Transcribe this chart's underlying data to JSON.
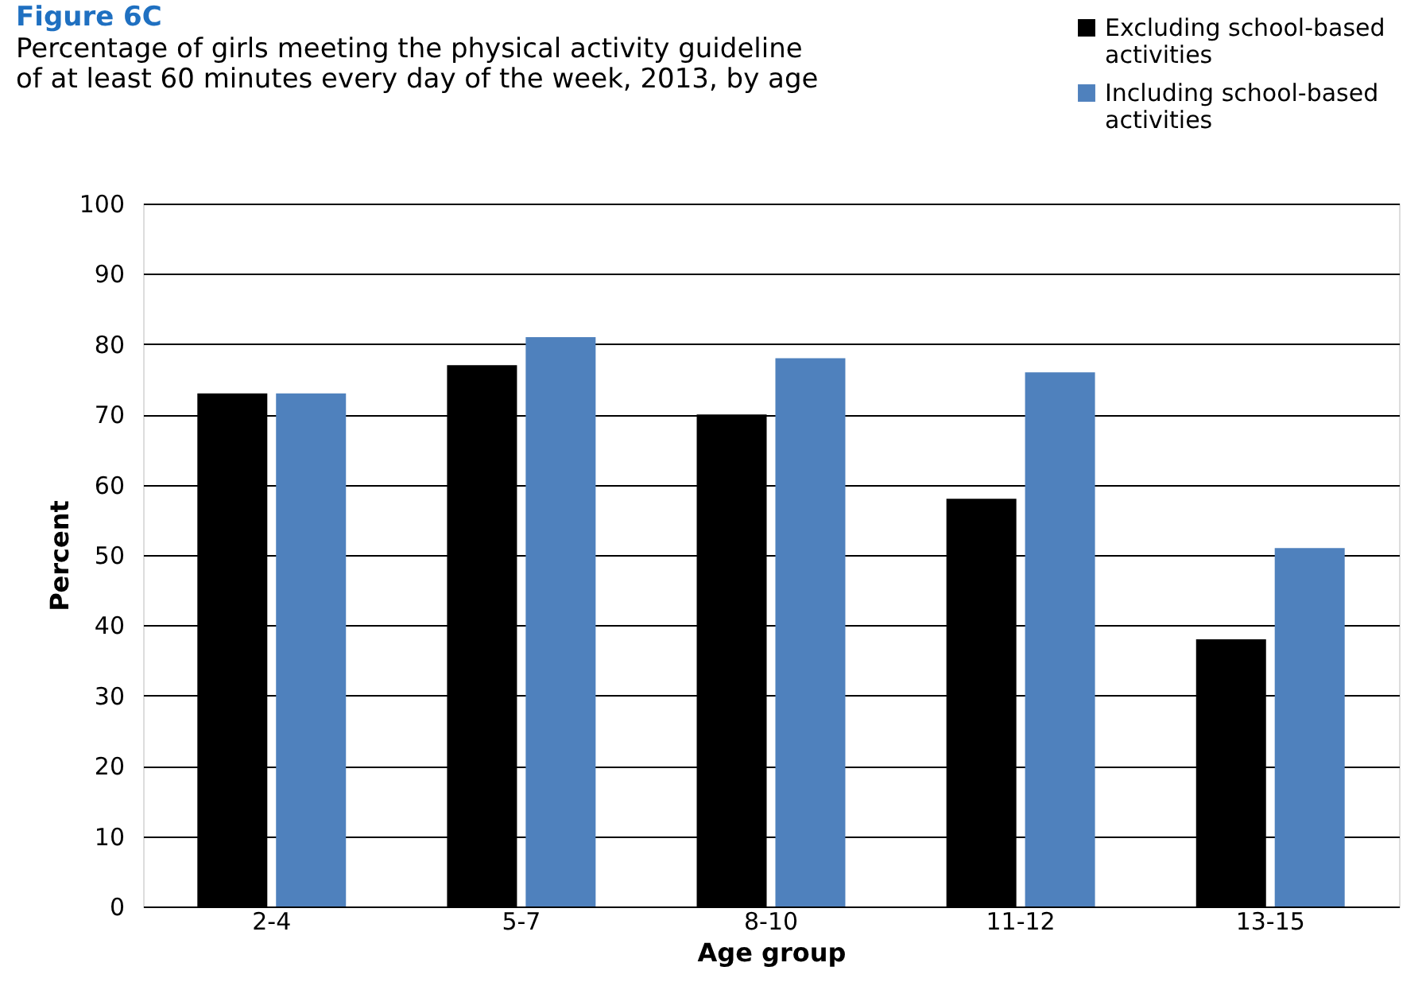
{
  "chart_data": {
    "type": "bar",
    "title": "Figure 6C",
    "subtitle": "Percentage of girls meeting the physical activity guideline of at least 60 minutes every day of the week, 2013, by age",
    "xlabel": "Age group",
    "ylabel": "Percent",
    "categories": [
      "2-4",
      "5-7",
      "8-10",
      "11-12",
      "13-15"
    ],
    "series": [
      {
        "name": "Excluding school-based activities",
        "color": "#000000",
        "values": [
          73,
          77,
          70,
          58,
          38
        ]
      },
      {
        "name": "Including school-based activities",
        "color": "#4f81bd",
        "values": [
          73,
          81,
          78,
          76,
          51
        ]
      }
    ],
    "ylim": [
      0,
      100
    ],
    "yticks": [
      0,
      10,
      20,
      30,
      40,
      50,
      60,
      70,
      80,
      90,
      100
    ],
    "grid": "y",
    "legend": "top right"
  }
}
